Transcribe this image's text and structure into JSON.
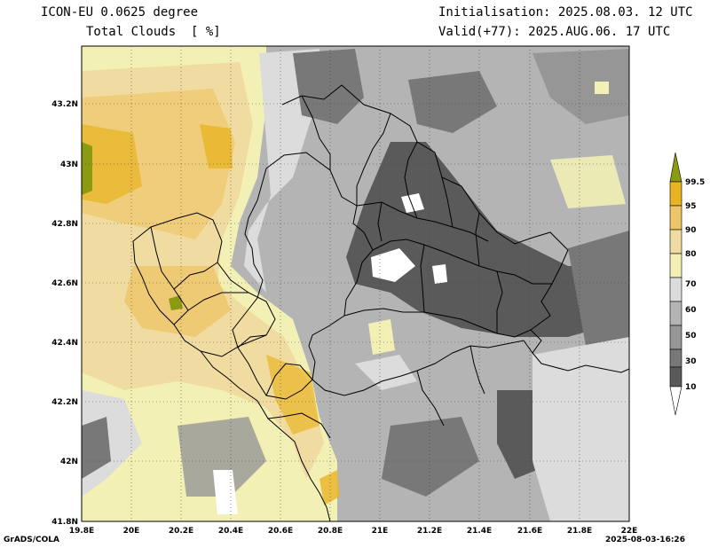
{
  "header": {
    "model": "ICON-EU 0.0625 degree",
    "field": "Total Clouds  [ %]",
    "init": "Initialisation: 2025.08.03. 12 UTC",
    "valid": "Valid(+77): 2025.AUG.06. 17 UTC"
  },
  "axes": {
    "lat_labels": [
      "43.2N",
      "43N",
      "42.8N",
      "42.6N",
      "42.4N",
      "42.2N",
      "42N",
      "41.8N"
    ],
    "lon_labels": [
      "19.8E",
      "20E",
      "20.2E",
      "20.4E",
      "20.6E",
      "20.8E",
      "21E",
      "21.2E",
      "21.4E",
      "21.6E",
      "21.8E",
      "22E"
    ]
  },
  "colorbar": {
    "levels": [
      "99.5",
      "95",
      "90",
      "80",
      "70",
      "60",
      "50",
      "30",
      "10"
    ],
    "colors": [
      "#8c9a12",
      "#e8b426",
      "#eec66a",
      "#f0dca0",
      "#f2f0b4",
      "#dcdcdc",
      "#b4b4b4",
      "#969696",
      "#787878",
      "#5a5a5a",
      "#ffffff"
    ]
  },
  "footer": {
    "left": "GrADS/COLA",
    "right": "2025-08-03-16:26"
  }
}
